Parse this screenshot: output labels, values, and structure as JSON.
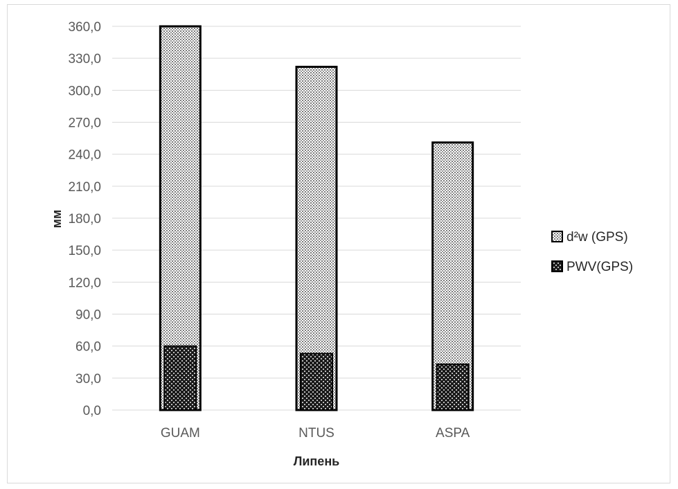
{
  "chart_data": {
    "type": "bar",
    "categories": [
      "GUAM",
      "NTUS",
      "ASPA"
    ],
    "series": [
      {
        "name": "d²w (GPS)",
        "values": [
          360.0,
          322.0,
          251.0
        ],
        "color": "#d0d0d0",
        "pattern": "fine-dots"
      },
      {
        "name": "PWV(GPS)",
        "values": [
          60.0,
          53.0,
          43.0
        ],
        "color": "#2a2a2a",
        "pattern": "coarse-dots"
      }
    ],
    "xlabel": "Липень",
    "ylabel": "мм",
    "ylim": [
      0,
      360
    ],
    "yticks": [
      "0,0",
      "30,0",
      "60,0",
      "90,0",
      "120,0",
      "150,0",
      "180,0",
      "210,0",
      "240,0",
      "270,0",
      "300,0",
      "330,0",
      "360,0"
    ],
    "grid": true,
    "legend_position": "right"
  }
}
